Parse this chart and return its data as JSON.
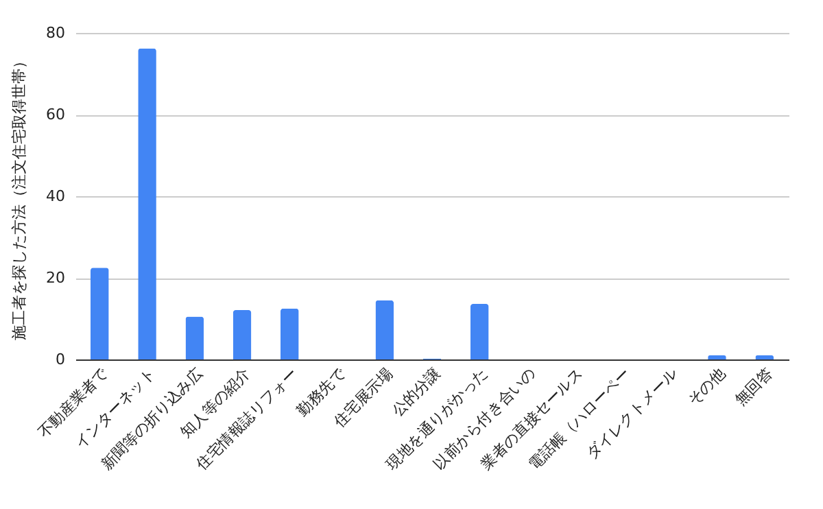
{
  "chart_data": {
    "type": "bar",
    "ylabel": "施工者を探した方法（注文住宅取得世帯）",
    "categories": [
      "不動産業者で",
      "インターネット",
      "新聞等の折り込み広",
      "知人等の紹介",
      "住宅情報誌リフォー",
      "勤務先で",
      "住宅展示場",
      "公的分譲",
      "現地を通りがかった",
      "以前から付き合いの",
      "業者の直接セールス",
      "電話帳（ハローペー",
      "ダイレクトメール",
      "その他",
      "無回答"
    ],
    "values": [
      22.5,
      76.2,
      10.5,
      12.1,
      12.5,
      0,
      14.5,
      0.2,
      13.6,
      0,
      0,
      0,
      0,
      1.0,
      1.0
    ],
    "color": "#4285f4",
    "ylim": [
      0,
      80
    ],
    "yticks": [
      0,
      20,
      40,
      60,
      80
    ],
    "grid": "y"
  }
}
